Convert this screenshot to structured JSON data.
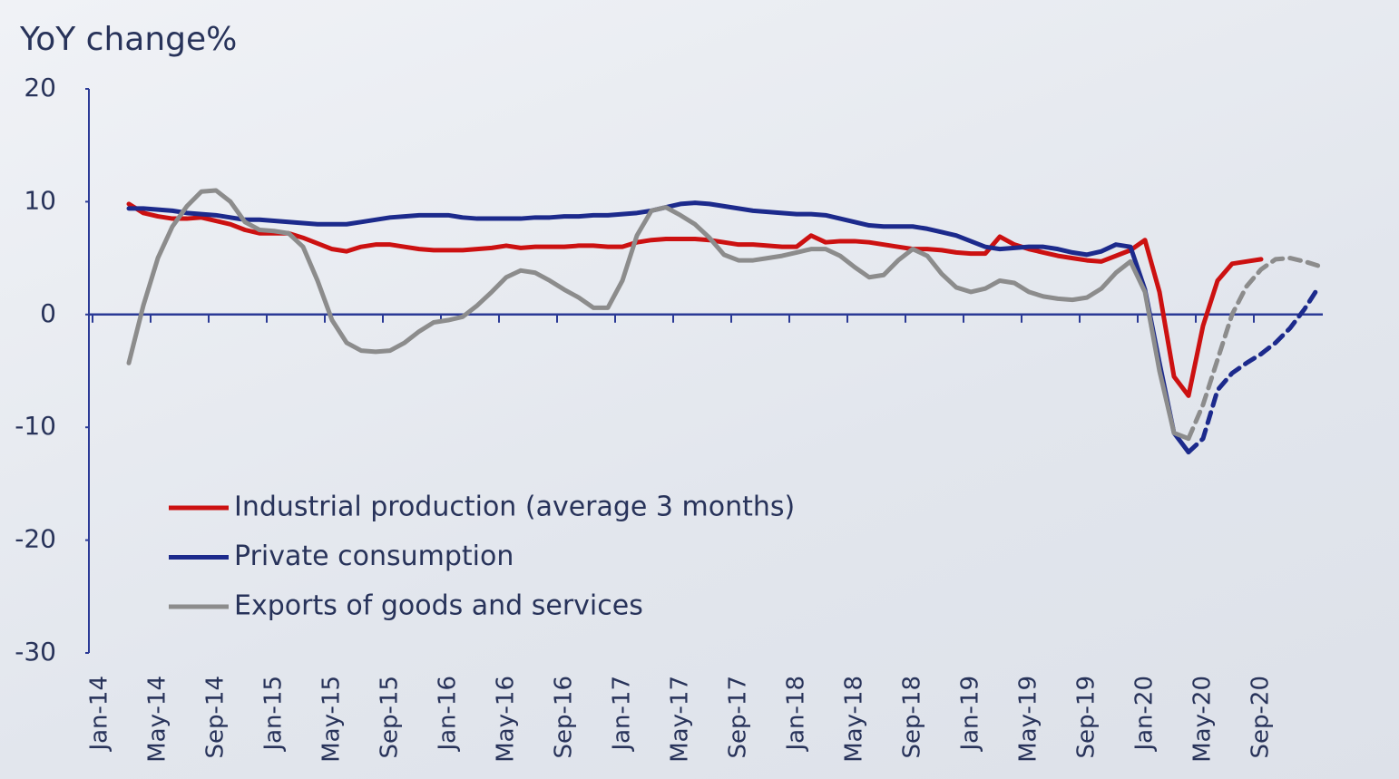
{
  "chart_data": {
    "type": "line",
    "y_label": "YoY change%",
    "categories": [
      "Jan-14",
      null,
      null,
      null,
      "May-14",
      null,
      null,
      null,
      "Sep-14",
      null,
      null,
      null,
      "Jan-15",
      null,
      null,
      null,
      "May-15",
      null,
      null,
      null,
      "Sep-15",
      null,
      null,
      null,
      "Jan-16",
      null,
      null,
      null,
      "May-16",
      null,
      null,
      null,
      "Sep-16",
      null,
      null,
      null,
      "Jan-17",
      null,
      null,
      null,
      "May-17",
      null,
      null,
      null,
      "Sep-17",
      null,
      null,
      null,
      "Jan-18",
      null,
      null,
      null,
      "May-18",
      null,
      null,
      null,
      "Sep-18",
      null,
      null,
      null,
      "Jan-19",
      null,
      null,
      null,
      "May-19",
      null,
      null,
      null,
      "Sep-19",
      null,
      null,
      null,
      "Jan-20",
      null,
      null,
      null,
      "May-20",
      null,
      null,
      null,
      "Sep-20",
      null,
      null,
      null,
      null
    ],
    "ylim": [
      -30,
      20
    ],
    "yticks": [
      -30,
      -20,
      -10,
      0,
      10,
      20
    ],
    "legend": "lower left",
    "series": [
      {
        "name": "Industrial production (average 3 months)",
        "color": "#cc1111",
        "values": [
          null,
          null,
          9.8,
          9.0,
          8.7,
          8.5,
          8.5,
          8.6,
          8.3,
          8.0,
          7.5,
          7.2,
          7.2,
          7.2,
          6.8,
          6.3,
          5.8,
          5.6,
          6.0,
          6.2,
          6.2,
          6.0,
          5.8,
          5.7,
          5.7,
          5.7,
          5.8,
          5.9,
          6.1,
          5.9,
          6.0,
          6.0,
          6.0,
          6.1,
          6.1,
          6.0,
          6.0,
          6.4,
          6.6,
          6.7,
          6.7,
          6.7,
          6.6,
          6.4,
          6.2,
          6.2,
          6.1,
          6.0,
          6.0,
          7.0,
          6.4,
          6.5,
          6.5,
          6.4,
          6.2,
          6.0,
          5.8,
          5.8,
          5.7,
          5.5,
          5.4,
          5.4,
          6.9,
          6.2,
          5.8,
          5.5,
          5.2,
          5.0,
          4.8,
          4.7,
          5.2,
          5.7,
          6.6,
          2.0,
          -5.5,
          -7.2,
          -1.0,
          3.0,
          4.5,
          4.7,
          4.9,
          null,
          null,
          null,
          null
        ]
      },
      {
        "name": "Private consumption",
        "color": "#1c2a8c",
        "values": [
          null,
          null,
          9.4,
          9.4,
          9.3,
          9.2,
          9.0,
          8.9,
          8.8,
          8.6,
          8.4,
          8.4,
          8.3,
          8.2,
          8.1,
          8.0,
          8.0,
          8.0,
          8.2,
          8.4,
          8.6,
          8.7,
          8.8,
          8.8,
          8.8,
          8.6,
          8.5,
          8.5,
          8.5,
          8.5,
          8.6,
          8.6,
          8.7,
          8.7,
          8.8,
          8.8,
          8.9,
          9.0,
          9.2,
          9.5,
          9.8,
          9.9,
          9.8,
          9.6,
          9.4,
          9.2,
          9.1,
          9.0,
          8.9,
          8.9,
          8.8,
          8.5,
          8.2,
          7.9,
          7.8,
          7.8,
          7.8,
          7.6,
          7.3,
          7.0,
          6.5,
          6.0,
          5.8,
          5.9,
          6.0,
          6.0,
          5.8,
          5.5,
          5.3,
          5.6,
          6.2,
          6.0,
          2.2,
          -4.3,
          -10.5,
          -12.2,
          null,
          null,
          null,
          null,
          null,
          null,
          null,
          null,
          null
        ],
        "dashed_values": [
          null,
          null,
          null,
          null,
          null,
          null,
          null,
          null,
          null,
          null,
          null,
          null,
          null,
          null,
          null,
          null,
          null,
          null,
          null,
          null,
          null,
          null,
          null,
          null,
          null,
          null,
          null,
          null,
          null,
          null,
          null,
          null,
          null,
          null,
          null,
          null,
          null,
          null,
          null,
          null,
          null,
          null,
          null,
          null,
          null,
          null,
          null,
          null,
          null,
          null,
          null,
          null,
          null,
          null,
          null,
          null,
          null,
          null,
          null,
          null,
          null,
          null,
          null,
          null,
          null,
          null,
          null,
          null,
          null,
          null,
          null,
          null,
          null,
          null,
          null,
          null,
          -11.0,
          -6.7,
          -5.2,
          -4.3,
          -3.5,
          -2.5,
          -1.2,
          0.5,
          2.5
        ]
      },
      {
        "name": "Exports of goods and services",
        "color": "#8c8c8c",
        "values": [
          null,
          null,
          -4.3,
          0.8,
          5.0,
          7.8,
          9.6,
          10.9,
          11.0,
          10.0,
          8.2,
          7.5,
          7.4,
          7.2,
          6.0,
          3.0,
          -0.5,
          -2.5,
          -3.2,
          -3.3,
          -3.2,
          -2.5,
          -1.5,
          -0.7,
          -0.5,
          -0.2,
          0.8,
          2.0,
          3.3,
          3.9,
          3.7,
          3.0,
          2.2,
          1.5,
          0.6,
          0.6,
          3.0,
          7.0,
          9.2,
          9.5,
          8.8,
          8.0,
          6.8,
          5.3,
          4.8,
          4.8,
          5.0,
          5.2,
          5.5,
          5.8,
          5.8,
          5.2,
          4.2,
          3.3,
          3.5,
          4.8,
          5.8,
          5.2,
          3.6,
          2.4,
          2.0,
          2.3,
          3.0,
          2.8,
          2.0,
          1.6,
          1.4,
          1.3,
          1.5,
          2.3,
          3.7,
          4.7,
          2.0,
          -5.0,
          -10.5,
          -11.0,
          null,
          null,
          null,
          null,
          null,
          null,
          null,
          null,
          null
        ],
        "dashed_values": [
          null,
          null,
          null,
          null,
          null,
          null,
          null,
          null,
          null,
          null,
          null,
          null,
          null,
          null,
          null,
          null,
          null,
          null,
          null,
          null,
          null,
          null,
          null,
          null,
          null,
          null,
          null,
          null,
          null,
          null,
          null,
          null,
          null,
          null,
          null,
          null,
          null,
          null,
          null,
          null,
          null,
          null,
          null,
          null,
          null,
          null,
          null,
          null,
          null,
          null,
          null,
          null,
          null,
          null,
          null,
          null,
          null,
          null,
          null,
          null,
          null,
          null,
          null,
          null,
          null,
          null,
          null,
          null,
          null,
          null,
          null,
          null,
          null,
          null,
          null,
          null,
          -8.0,
          -4.0,
          0.0,
          2.5,
          4.0,
          4.9,
          5.0,
          4.7,
          4.3
        ]
      }
    ]
  }
}
